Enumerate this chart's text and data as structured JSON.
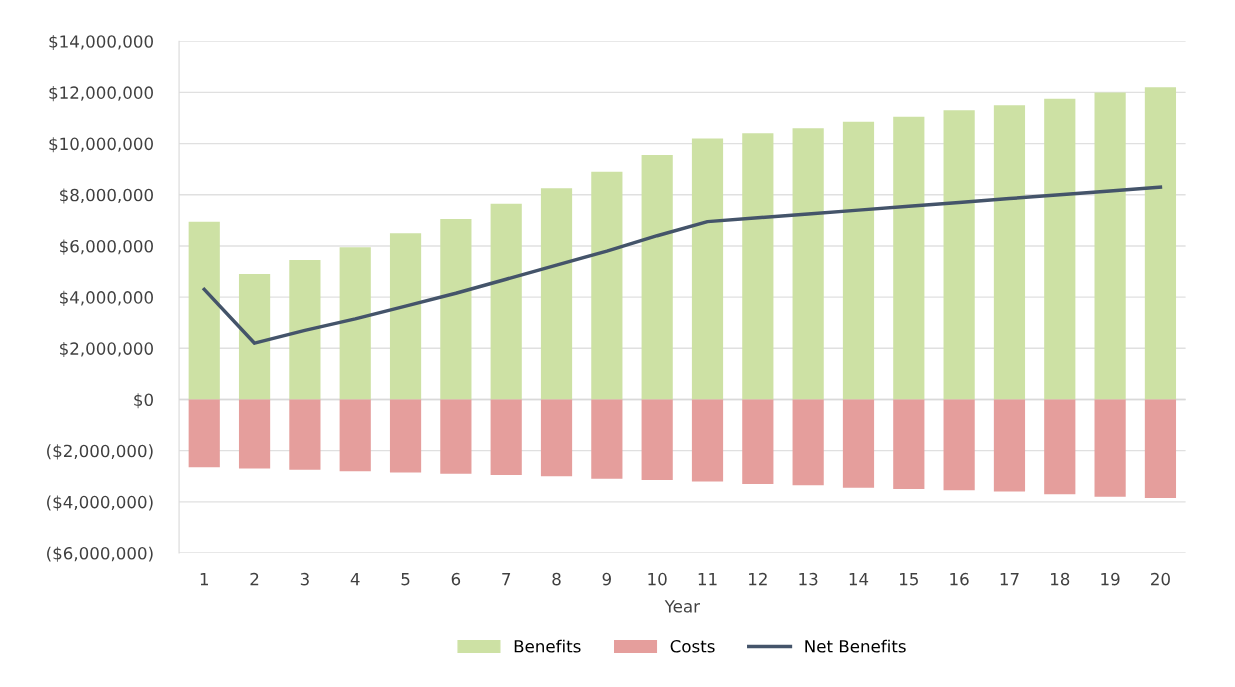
{
  "chart_data": {
    "type": "bar",
    "stacked": true,
    "xlabel": "Year",
    "categories": [
      "1",
      "2",
      "3",
      "4",
      "5",
      "6",
      "7",
      "8",
      "9",
      "10",
      "11",
      "12",
      "13",
      "14",
      "15",
      "16",
      "17",
      "18",
      "19",
      "20"
    ],
    "series": [
      {
        "name": "Benefits",
        "color": "#cde1a4",
        "values": [
          6950000,
          4900000,
          5450000,
          5950000,
          6500000,
          7050000,
          7650000,
          8250000,
          8900000,
          9550000,
          10200000,
          10400000,
          10600000,
          10850000,
          11050000,
          11300000,
          11500000,
          11750000,
          12000000,
          12200000
        ]
      },
      {
        "name": "Costs",
        "color": "#e59e9c",
        "values": [
          -2650000,
          -2700000,
          -2750000,
          -2800000,
          -2850000,
          -2900000,
          -2950000,
          -3000000,
          -3100000,
          -3150000,
          -3200000,
          -3300000,
          -3350000,
          -3450000,
          -3500000,
          -3550000,
          -3600000,
          -3700000,
          -3800000,
          -3850000
        ]
      },
      {
        "name": "Net Benefits",
        "type": "line",
        "color": "#44546a",
        "values": [
          4300000,
          2200000,
          2700000,
          3150000,
          3650000,
          4150000,
          4700000,
          5250000,
          5800000,
          6400000,
          6950000,
          7100000,
          7250000,
          7400000,
          7550000,
          7700000,
          7850000,
          8000000,
          8150000,
          8300000
        ]
      }
    ],
    "ylim": [
      -6000000,
      14000000
    ],
    "yticks": [
      {
        "value": -6000000,
        "label": "($6,000,000)"
      },
      {
        "value": -4000000,
        "label": "($4,000,000)"
      },
      {
        "value": -2000000,
        "label": "($2,000,000)"
      },
      {
        "value": 0,
        "label": "$0"
      },
      {
        "value": 2000000,
        "label": "$2,000,000"
      },
      {
        "value": 4000000,
        "label": "$4,000,000"
      },
      {
        "value": 6000000,
        "label": "$6,000,000"
      },
      {
        "value": 8000000,
        "label": "$8,000,000"
      },
      {
        "value": 10000000,
        "label": "$10,000,000"
      },
      {
        "value": 12000000,
        "label": "$12,000,000"
      },
      {
        "value": 14000000,
        "label": "$14,000,000"
      }
    ],
    "grid": "y",
    "legend": "bottom",
    "marker": "none",
    "line_style": "solid"
  }
}
